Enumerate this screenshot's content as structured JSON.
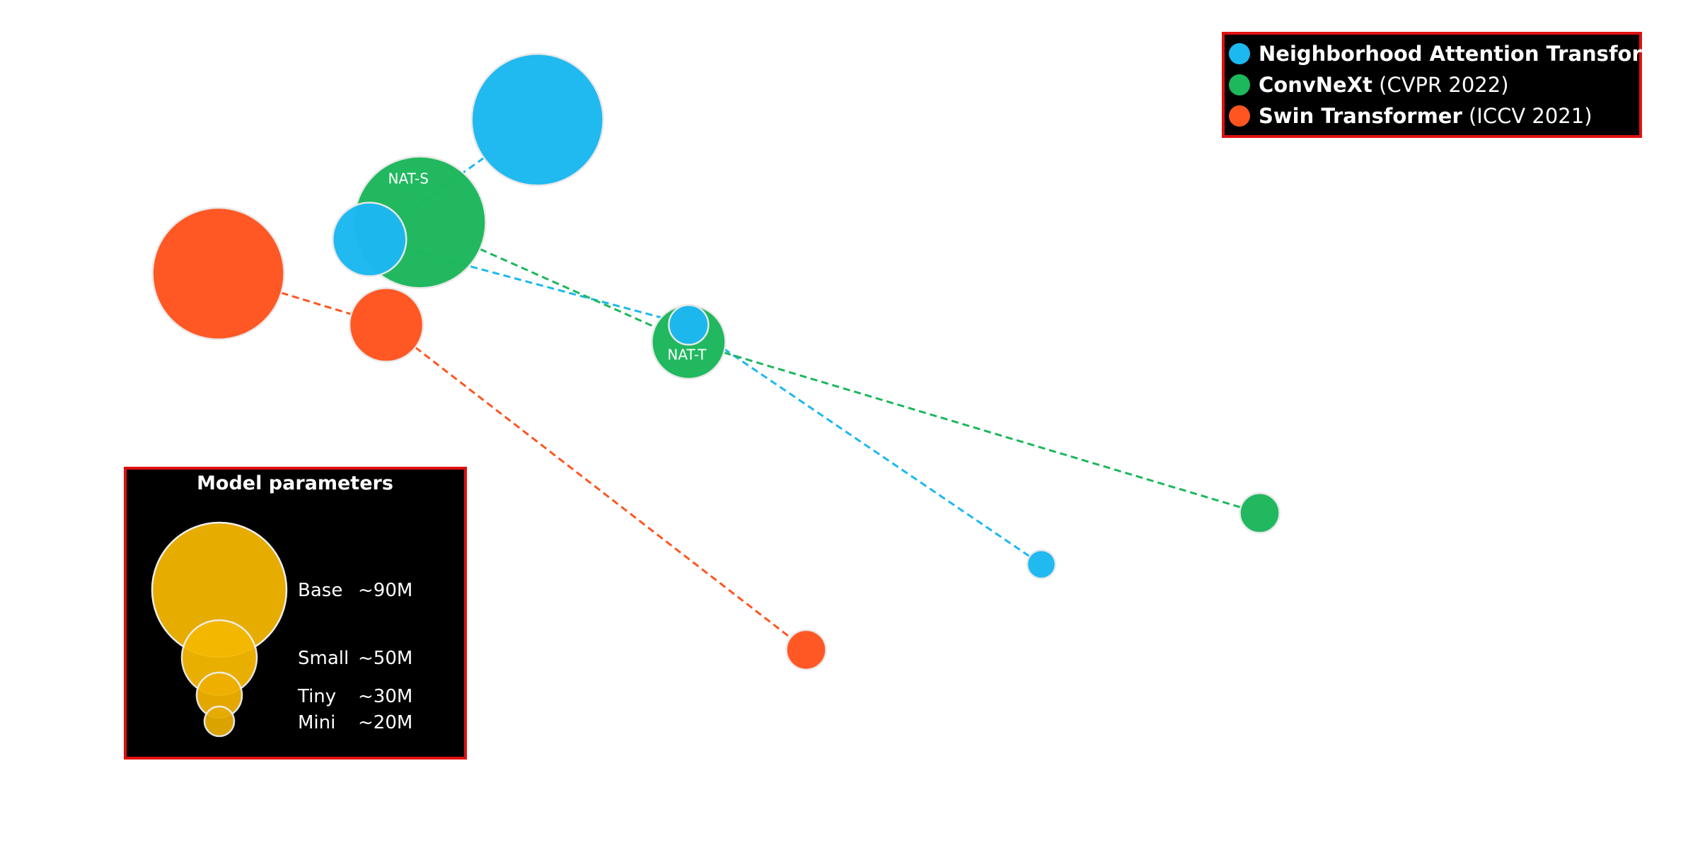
{
  "chart_data": {
    "type": "scatter",
    "variant": "bubble",
    "axes_visible": false,
    "grid": false,
    "legend_position": "top-right",
    "size_legend_position": "bottom-left",
    "series": [
      {
        "name": "Neighborhood Attention Transformer",
        "venue": "",
        "color": "#1cb8f0",
        "points": [
          {
            "size": "Base",
            "x": 0.32,
            "y": 0.14,
            "label": ""
          },
          {
            "size": "Small",
            "x": 0.22,
            "y": 0.28,
            "label": ""
          },
          {
            "size": "Tiny",
            "x": 0.41,
            "y": 0.38,
            "label": ""
          },
          {
            "size": "Mini",
            "x": 0.62,
            "y": 0.66,
            "label": ""
          }
        ]
      },
      {
        "name": "ConvNeXt",
        "venue": "(CVPR 2022)",
        "color": "#1db75c",
        "points": [
          {
            "size": "Base",
            "x": 0.25,
            "y": 0.26,
            "label": "NAT-S"
          },
          {
            "size": "Small",
            "x": 0.41,
            "y": 0.4,
            "label": "NAT-T"
          },
          {
            "size": "Tiny",
            "x": 0.75,
            "y": 0.6,
            "label": ""
          }
        ]
      },
      {
        "name": "Swin Transformer",
        "venue": "(ICCV 2021)",
        "color": "#ff5520",
        "points": [
          {
            "size": "Base",
            "x": 0.13,
            "y": 0.32,
            "label": ""
          },
          {
            "size": "Small",
            "x": 0.23,
            "y": 0.38,
            "label": ""
          },
          {
            "size": "Tiny",
            "x": 0.48,
            "y": 0.76,
            "label": ""
          }
        ]
      }
    ],
    "size_legend": {
      "title": "Model parameters",
      "color": "#e6ac00",
      "entries": [
        {
          "name": "Base",
          "value": "~90M",
          "params_m": 90
        },
        {
          "name": "Small",
          "value": "~50M",
          "params_m": 50
        },
        {
          "name": "Tiny",
          "value": "~30M",
          "params_m": 30
        },
        {
          "name": "Mini",
          "value": "~20M",
          "params_m": 20
        }
      ]
    }
  }
}
